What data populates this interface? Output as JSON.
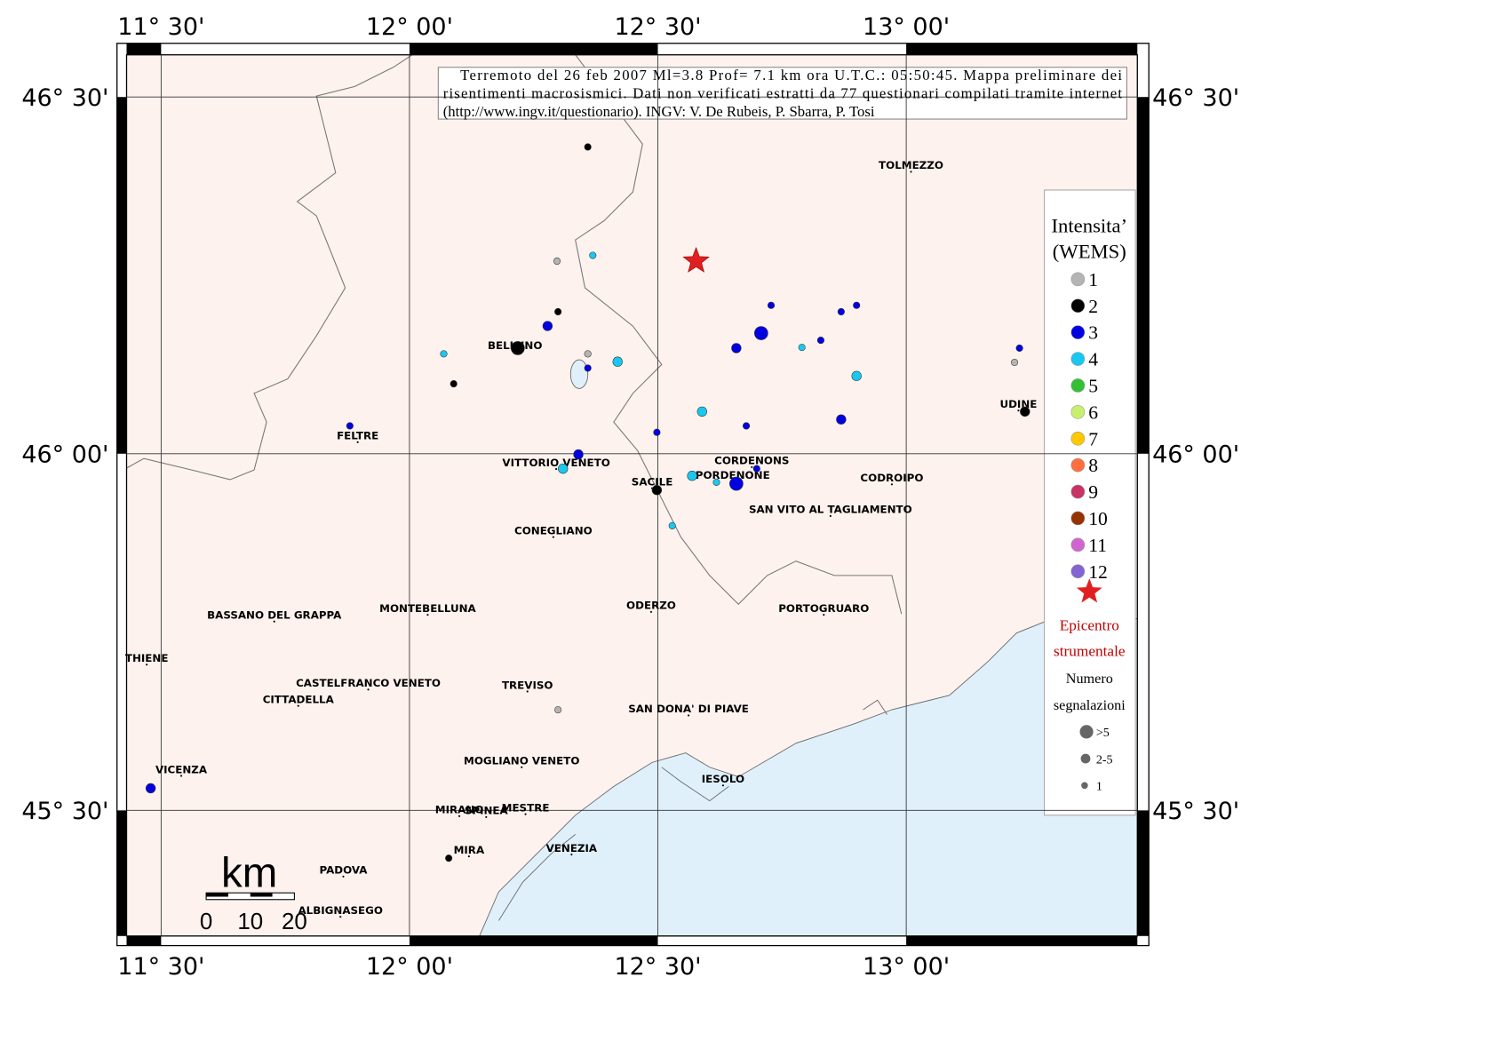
{
  "map": {
    "lon_ticks": [
      {
        "value": 11.5,
        "label": "11° 30'"
      },
      {
        "value": 12,
        "label": "12° 00'"
      },
      {
        "value": 12.5,
        "label": "12° 30'"
      },
      {
        "value": 13,
        "label": "13° 00'"
      }
    ],
    "lat_ticks": [
      {
        "value": 46.5,
        "label": "46° 30'"
      },
      {
        "value": 46,
        "label": "46° 00'"
      },
      {
        "value": 45.5,
        "label": "45° 30'"
      }
    ],
    "title_lines": [
      "Terremoto del 26 feb 2007 Ml=3.8 Prof= 7.1 km ora U.T.C.: 05:50:45.  Mappa preliminare dei",
      "risentimenti macrosismici.   Dati non verificati estratti da 77 questionari compilati tramite internet",
      "(http://www.ingv.it/questionario).   INGV: V.  De Rubeis, P.  Sbarra, P.  Tosi"
    ],
    "cities": [
      "BELLUNO",
      "FELTRE",
      "VITTORIO VENETO",
      "SACILE",
      "CORDENONS",
      "PORDENONE",
      "CODROIPO",
      "SAN VITO AL TAGLIAMENTO",
      "CONEGLIANO",
      "TOLMEZZO",
      "UDINE",
      "BASSANO DEL GRAPPA",
      "MONTEBELLUNA",
      "ODERZO",
      "PORTOGRUARO",
      "THIENE",
      "CASTELFRANCO VENETO",
      "CITTADELLA",
      "TREVISO",
      "SAN DONA' DI PIAVE",
      "VICENZA",
      "MOGLIANO VENETO",
      "IESOLO",
      "MIRANO",
      "SPINEA",
      "MESTRE",
      "MIRA",
      "VENEZIA",
      "PADOVA",
      "ALBIGNASEGO"
    ],
    "epicenter": {
      "lon": 12.577,
      "lat": 46.27
    },
    "points": [
      {
        "lon": 12.359,
        "lat": 46.43,
        "intensity": 2,
        "reports": "1"
      },
      {
        "lon": 12.297,
        "lat": 46.27,
        "intensity": 1,
        "reports": "1"
      },
      {
        "lon": 12.369,
        "lat": 46.278,
        "intensity": 4,
        "reports": "1"
      },
      {
        "lon": 12.299,
        "lat": 46.199,
        "intensity": 2,
        "reports": "1"
      },
      {
        "lon": 12.278,
        "lat": 46.179,
        "intensity": 3,
        "reports": "2-5"
      },
      {
        "lon": 12.218,
        "lat": 46.148,
        "intensity": 2,
        "reports": ">5"
      },
      {
        "lon": 12.359,
        "lat": 46.14,
        "intensity": 1,
        "reports": "1"
      },
      {
        "lon": 12.359,
        "lat": 46.12,
        "intensity": 3,
        "reports": "1"
      },
      {
        "lon": 12.419,
        "lat": 46.129,
        "intensity": 4,
        "reports": "2-5"
      },
      {
        "lon": 12.069,
        "lat": 46.14,
        "intensity": 4,
        "reports": "1"
      },
      {
        "lon": 12.089,
        "lat": 46.098,
        "intensity": 2,
        "reports": "1"
      },
      {
        "lon": 11.88,
        "lat": 46.039,
        "intensity": 3,
        "reports": "1"
      },
      {
        "lon": 12.34,
        "lat": 45.999,
        "intensity": 3,
        "reports": "2-5"
      },
      {
        "lon": 12.309,
        "lat": 45.979,
        "intensity": 4,
        "reports": "2-5"
      },
      {
        "lon": 12.498,
        "lat": 46.03,
        "intensity": 3,
        "reports": "1"
      },
      {
        "lon": 12.498,
        "lat": 45.949,
        "intensity": 2,
        "reports": "2-5"
      },
      {
        "lon": 12.529,
        "lat": 45.899,
        "intensity": 4,
        "reports": "1"
      },
      {
        "lon": 12.569,
        "lat": 45.969,
        "intensity": 4,
        "reports": "2-5"
      },
      {
        "lon": 12.618,
        "lat": 45.96,
        "intensity": 4,
        "reports": "1"
      },
      {
        "lon": 12.658,
        "lat": 45.958,
        "intensity": 3,
        "reports": ">5"
      },
      {
        "lon": 12.699,
        "lat": 45.979,
        "intensity": 3,
        "reports": "1"
      },
      {
        "lon": 12.589,
        "lat": 46.059,
        "intensity": 4,
        "reports": "2-5"
      },
      {
        "lon": 12.678,
        "lat": 46.039,
        "intensity": 3,
        "reports": "1"
      },
      {
        "lon": 12.658,
        "lat": 46.148,
        "intensity": 3,
        "reports": "2-5"
      },
      {
        "lon": 12.708,
        "lat": 46.169,
        "intensity": 3,
        "reports": ">5"
      },
      {
        "lon": 12.728,
        "lat": 46.208,
        "intensity": 3,
        "reports": "1"
      },
      {
        "lon": 12.79,
        "lat": 46.149,
        "intensity": 4,
        "reports": "1"
      },
      {
        "lon": 12.828,
        "lat": 46.159,
        "intensity": 3,
        "reports": "1"
      },
      {
        "lon": 12.869,
        "lat": 46.199,
        "intensity": 3,
        "reports": "1"
      },
      {
        "lon": 12.9,
        "lat": 46.208,
        "intensity": 3,
        "reports": "1"
      },
      {
        "lon": 12.9,
        "lat": 46.109,
        "intensity": 4,
        "reports": "2-5"
      },
      {
        "lon": 12.869,
        "lat": 46.048,
        "intensity": 3,
        "reports": "2-5"
      },
      {
        "lon": 13.228,
        "lat": 46.148,
        "intensity": 3,
        "reports": "1"
      },
      {
        "lon": 13.218,
        "lat": 46.128,
        "intensity": 1,
        "reports": "1"
      },
      {
        "lon": 13.239,
        "lat": 46.059,
        "intensity": 2,
        "reports": "2-5"
      },
      {
        "lon": 12.299,
        "lat": 45.641,
        "intensity": 1,
        "reports": "1"
      },
      {
        "lon": 12.079,
        "lat": 45.433,
        "intensity": 2,
        "reports": "1"
      },
      {
        "lon": 11.479,
        "lat": 45.531,
        "intensity": 3,
        "reports": "2-5"
      }
    ],
    "legend": {
      "title": [
        "Intensita’",
        "(WEMS)"
      ],
      "intensities": [
        {
          "value": 1,
          "color": "#b4b4b4"
        },
        {
          "value": 2,
          "color": "#000000"
        },
        {
          "value": 3,
          "color": "#0000e0"
        },
        {
          "value": 4,
          "color": "#19c8f0"
        },
        {
          "value": 5,
          "color": "#33c033"
        },
        {
          "value": 6,
          "color": "#c8f06e"
        },
        {
          "value": 7,
          "color": "#ffc800"
        },
        {
          "value": 8,
          "color": "#ff6e3c"
        },
        {
          "value": 9,
          "color": "#c83264"
        },
        {
          "value": 10,
          "color": "#963200"
        },
        {
          "value": 11,
          "color": "#d264d2"
        },
        {
          "value": 12,
          "color": "#8264d2"
        }
      ],
      "epicenter_label": [
        "Epicentro",
        "strumentale"
      ],
      "size_title": [
        "Numero",
        "segnalazioni"
      ],
      "sizes": [
        ">5",
        "2-5",
        "1"
      ]
    },
    "scale": {
      "unit": "km",
      "labels": [
        "0",
        "10",
        "20"
      ]
    }
  }
}
